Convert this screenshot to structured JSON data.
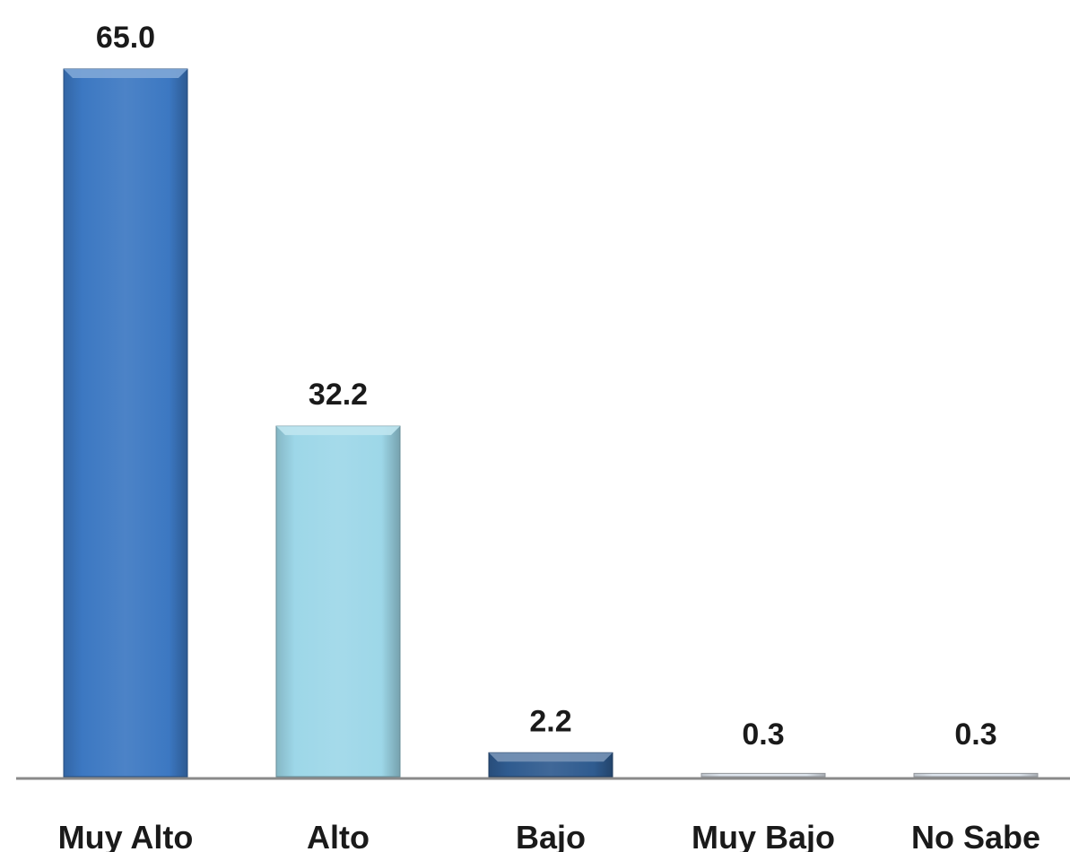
{
  "chart_data": {
    "type": "bar",
    "categories": [
      "Muy Alto",
      "Alto",
      "Bajo",
      "Muy Bajo",
      "No Sabe"
    ],
    "values": [
      65.0,
      32.2,
      2.2,
      0.3,
      0.3
    ],
    "value_labels": [
      "65.0",
      "32.2",
      "2.2",
      "0.3",
      "0.3"
    ],
    "bar_colors": [
      "#3c78c2",
      "#9dd7e8",
      "#2f5b8f",
      "#dde4ec",
      "#dde4ec"
    ],
    "axis_color": "#8a8a8a",
    "ylim": [
      0,
      65
    ],
    "grid": false,
    "legend": "none"
  }
}
